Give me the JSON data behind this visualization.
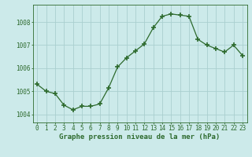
{
  "x": [
    0,
    1,
    2,
    3,
    4,
    5,
    6,
    7,
    8,
    9,
    10,
    11,
    12,
    13,
    14,
    15,
    16,
    17,
    18,
    19,
    20,
    21,
    22,
    23
  ],
  "y": [
    1005.3,
    1005.0,
    1004.9,
    1004.4,
    1004.2,
    1004.35,
    1004.35,
    1004.45,
    1005.15,
    1006.05,
    1006.45,
    1006.75,
    1007.05,
    1007.75,
    1008.25,
    1008.35,
    1008.3,
    1008.25,
    1007.25,
    1007.0,
    1006.85,
    1006.7,
    1007.0,
    1006.55
  ],
  "line_color": "#2d6a2d",
  "marker": "+",
  "marker_size": 4,
  "marker_lw": 1.2,
  "bg_color": "#cceaea",
  "grid_color": "#aacfcf",
  "axis_color": "#2d6a2d",
  "xlabel": "Graphe pression niveau de la mer (hPa)",
  "xlabel_fontsize": 6.5,
  "ytick_labels": [
    "1004",
    "1005",
    "1006",
    "1007",
    "1008"
  ],
  "ytick_values": [
    1004,
    1005,
    1006,
    1007,
    1008
  ],
  "ylim": [
    1003.65,
    1008.75
  ],
  "xlim": [
    -0.5,
    23.5
  ],
  "xtick_fontsize": 5.5,
  "ytick_fontsize": 5.5,
  "line_width": 0.9
}
